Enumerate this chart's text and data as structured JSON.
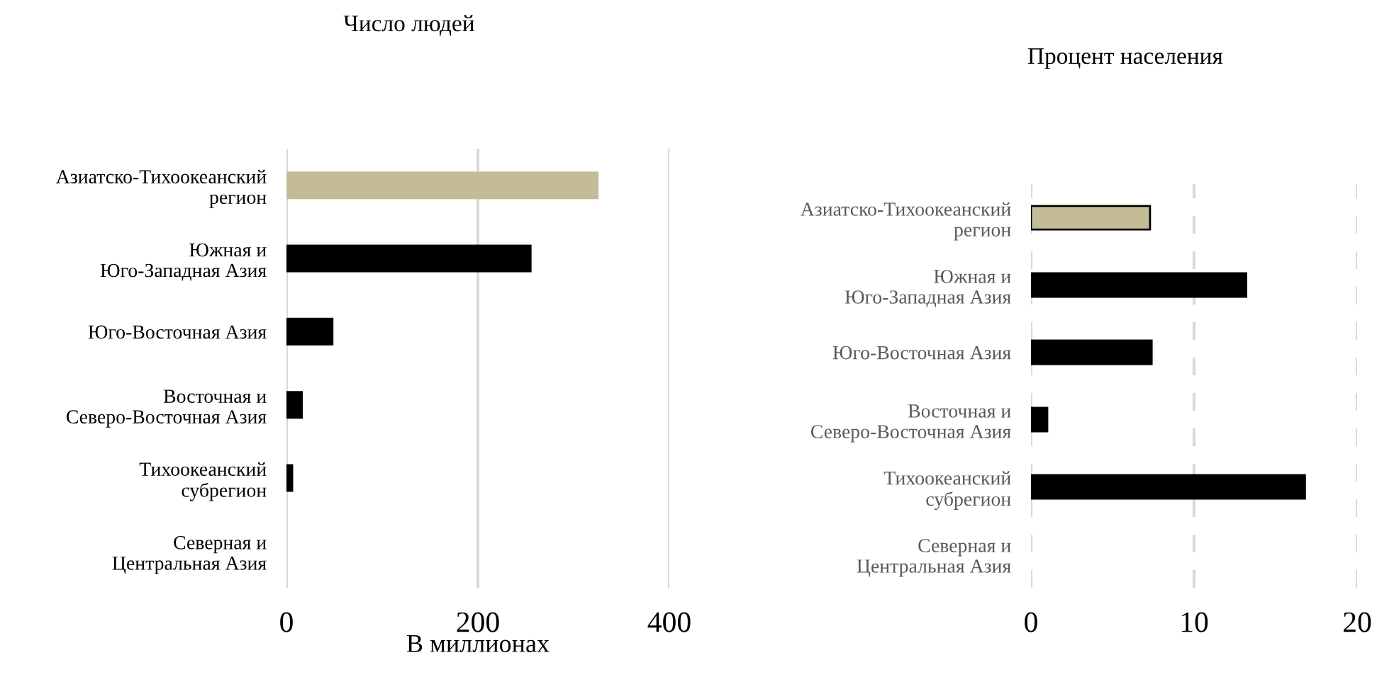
{
  "chart_data": [
    {
      "type": "bar",
      "orientation": "horizontal",
      "title": "Число людей",
      "xlabel": "В миллионах",
      "categories": [
        "Азиатско-Тихоокеанский регион",
        "Южная и Юго-Западная Азия",
        "Юго-Восточная Азия",
        "Восточная и Северо-Восточная Азия",
        "Тихоокеанский субрегион",
        "Северная и Центральная Азия"
      ],
      "values": [
        325,
        255,
        48,
        16,
        6,
        null
      ],
      "colors": [
        "#c4bc96",
        "#000000",
        "#000000",
        "#000000",
        "#000000",
        "#000000"
      ],
      "xlim": [
        0,
        400
      ],
      "xticks": [
        0,
        200,
        400
      ],
      "grid": "x",
      "line_style": "solid"
    },
    {
      "type": "bar",
      "orientation": "horizontal",
      "title": "Процент населения",
      "categories": [
        "Азиатско-Тихоокеанский регион",
        "Южная и Юго-Западная Азия",
        "Юго-Восточная Азия",
        "Восточная и Северо-Восточная Азия",
        "Тихоокеанский субрегион",
        "Северная и Центральная Азия"
      ],
      "values": [
        7.3,
        13.2,
        7.4,
        1.0,
        16.8,
        null
      ],
      "colors": [
        "#c4bc96",
        "#000000",
        "#000000",
        "#000000",
        "#000000",
        "#000000"
      ],
      "xlim": [
        0,
        20
      ],
      "xticks": [
        0,
        10,
        20
      ],
      "grid": "x",
      "line_style": "dashed"
    }
  ]
}
